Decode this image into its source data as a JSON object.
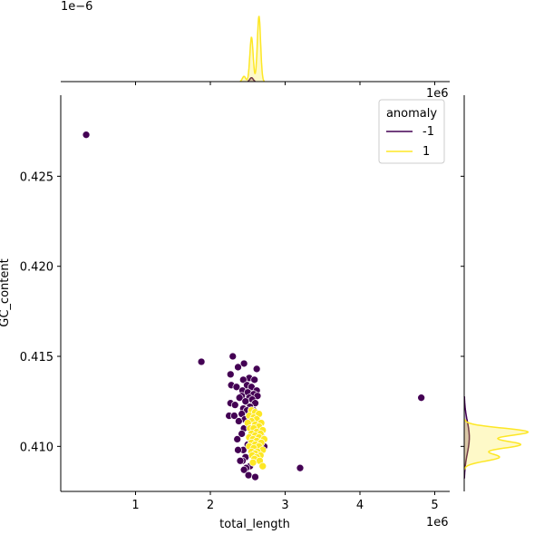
{
  "chart_data": {
    "type": "scatter",
    "xlabel": "total_length",
    "ylabel": "GC_content",
    "x_offset_label": "1e6",
    "y_offset_label": "",
    "top_marginal_offset_label": "1e−6",
    "right_marginal_offset_label": "1e6",
    "xlim": [
      0.0,
      5.2
    ],
    "ylim": [
      0.4075,
      0.4295
    ],
    "xticks": [
      1,
      2,
      3,
      4,
      5
    ],
    "yticks": [
      0.41,
      0.415,
      0.42,
      0.425
    ],
    "xtick_labels": [
      "1",
      "2",
      "3",
      "4",
      "5"
    ],
    "ytick_labels": [
      "0.410",
      "0.415",
      "0.420",
      "0.425"
    ],
    "legend": {
      "title": "anomaly",
      "position": "top-right",
      "entries": [
        {
          "label": "-1",
          "color": "#440154"
        },
        {
          "label": "1",
          "color": "#fde725"
        }
      ]
    },
    "grid": false,
    "series": [
      {
        "name": "-1",
        "color": "#440154",
        "points": [
          [
            0.34,
            0.4273
          ],
          [
            1.88,
            0.4147
          ],
          [
            4.82,
            0.4127
          ],
          [
            3.2,
            0.4088
          ],
          [
            2.3,
            0.415
          ],
          [
            2.45,
            0.4146
          ],
          [
            2.37,
            0.4144
          ],
          [
            2.62,
            0.4143
          ],
          [
            2.27,
            0.414
          ],
          [
            2.52,
            0.4138
          ],
          [
            2.59,
            0.4137
          ],
          [
            2.44,
            0.4137
          ],
          [
            2.28,
            0.4134
          ],
          [
            2.49,
            0.4134
          ],
          [
            2.35,
            0.4133
          ],
          [
            2.55,
            0.4133
          ],
          [
            2.62,
            0.4131
          ],
          [
            2.43,
            0.4131
          ],
          [
            2.5,
            0.413
          ],
          [
            2.58,
            0.4129
          ],
          [
            2.42,
            0.4128
          ],
          [
            2.63,
            0.4128
          ],
          [
            2.52,
            0.4127
          ],
          [
            2.39,
            0.4127
          ],
          [
            2.56,
            0.4126
          ],
          [
            2.47,
            0.4125
          ],
          [
            2.6,
            0.4124
          ],
          [
            2.27,
            0.4124
          ],
          [
            2.33,
            0.4123
          ],
          [
            2.53,
            0.4122
          ],
          [
            2.44,
            0.4121
          ],
          [
            2.58,
            0.412
          ],
          [
            2.49,
            0.412
          ],
          [
            2.42,
            0.4118
          ],
          [
            2.25,
            0.4117
          ],
          [
            2.32,
            0.4117
          ],
          [
            2.55,
            0.4117
          ],
          [
            2.6,
            0.4116
          ],
          [
            2.46,
            0.4115
          ],
          [
            2.38,
            0.4114
          ],
          [
            2.52,
            0.4113
          ],
          [
            2.66,
            0.4111
          ],
          [
            2.45,
            0.411
          ],
          [
            2.56,
            0.4108
          ],
          [
            2.42,
            0.4107
          ],
          [
            2.68,
            0.4106
          ],
          [
            2.36,
            0.4104
          ],
          [
            2.5,
            0.4101
          ],
          [
            2.44,
            0.4098
          ],
          [
            2.37,
            0.4098
          ],
          [
            2.72,
            0.41
          ],
          [
            2.57,
            0.4096
          ],
          [
            2.47,
            0.4094
          ],
          [
            2.43,
            0.4092
          ],
          [
            2.53,
            0.4089
          ],
          [
            2.48,
            0.4088
          ],
          [
            2.45,
            0.4087
          ],
          [
            2.51,
            0.4084
          ],
          [
            2.6,
            0.4083
          ],
          [
            2.4,
            0.4092
          ]
        ]
      },
      {
        "name": "1",
        "color": "#fde725",
        "points": [
          [
            2.55,
            0.412
          ],
          [
            2.6,
            0.4119
          ],
          [
            2.65,
            0.4118
          ],
          [
            2.52,
            0.4117
          ],
          [
            2.58,
            0.4116
          ],
          [
            2.62,
            0.4115
          ],
          [
            2.55,
            0.4114
          ],
          [
            2.68,
            0.4113
          ],
          [
            2.5,
            0.4113
          ],
          [
            2.6,
            0.4112
          ],
          [
            2.65,
            0.4111
          ],
          [
            2.53,
            0.411
          ],
          [
            2.58,
            0.411
          ],
          [
            2.7,
            0.4109
          ],
          [
            2.62,
            0.4108
          ],
          [
            2.55,
            0.4107
          ],
          [
            2.67,
            0.4107
          ],
          [
            2.6,
            0.4106
          ],
          [
            2.52,
            0.4105
          ],
          [
            2.65,
            0.4105
          ],
          [
            2.57,
            0.4104
          ],
          [
            2.72,
            0.4104
          ],
          [
            2.62,
            0.4103
          ],
          [
            2.55,
            0.4102
          ],
          [
            2.68,
            0.4102
          ],
          [
            2.6,
            0.4101
          ],
          [
            2.52,
            0.41
          ],
          [
            2.65,
            0.41
          ],
          [
            2.58,
            0.4099
          ],
          [
            2.7,
            0.4098
          ],
          [
            2.55,
            0.4097
          ],
          [
            2.63,
            0.4097
          ],
          [
            2.6,
            0.4096
          ],
          [
            2.67,
            0.4095
          ],
          [
            2.56,
            0.4095
          ],
          [
            2.62,
            0.4094
          ],
          [
            2.59,
            0.4093
          ],
          [
            2.66,
            0.4092
          ],
          [
            2.57,
            0.4091
          ],
          [
            2.7,
            0.4089
          ]
        ]
      }
    ],
    "marginal_x": {
      "series": [
        {
          "name": "-1",
          "color": "#440154",
          "peaks": [
            [
              2.55,
              0.06
            ]
          ]
        },
        {
          "name": "1",
          "color": "#fde725",
          "peaks": [
            [
              2.55,
              0.68
            ],
            [
              2.65,
              1.0
            ],
            [
              2.45,
              0.08
            ]
          ]
        }
      ]
    },
    "marginal_y": {
      "series": [
        {
          "name": "-1",
          "color": "#440154",
          "peaks": [
            [
              0.4105,
              0.08
            ]
          ]
        },
        {
          "name": "1",
          "color": "#fde725",
          "peaks": [
            [
              0.4108,
              1.0
            ],
            [
              0.4101,
              0.88
            ],
            [
              0.4094,
              0.55
            ]
          ]
        }
      ]
    }
  }
}
